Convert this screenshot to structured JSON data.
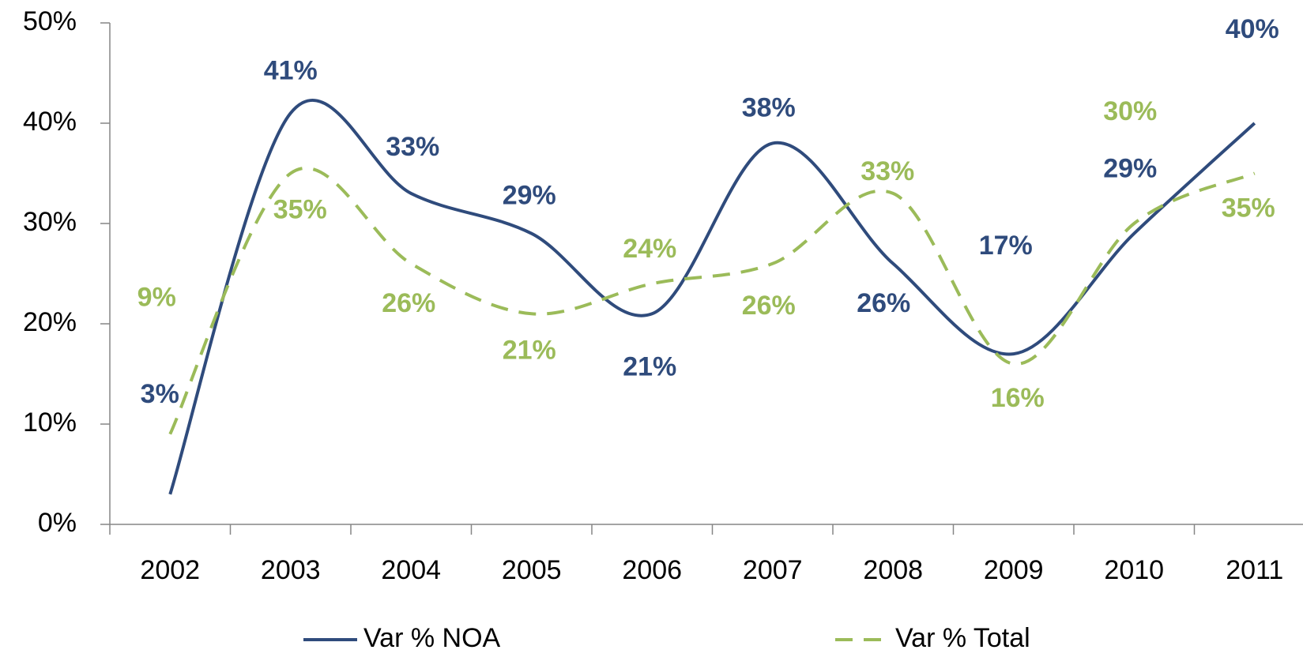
{
  "chart_data": {
    "type": "line",
    "categories": [
      "2002",
      "2003",
      "2004",
      "2005",
      "2006",
      "2007",
      "2008",
      "2009",
      "2010",
      "2011"
    ],
    "series": [
      {
        "name": "Var % NOA",
        "color": "#2f4b7c",
        "dash": "solid",
        "values": [
          3,
          41,
          33,
          29,
          21,
          38,
          26,
          17,
          29,
          40
        ],
        "value_labels": [
          "3%",
          "41%",
          "33%",
          "29%",
          "21%",
          "38%",
          "26%",
          "17%",
          "29%",
          "40%"
        ]
      },
      {
        "name": "Var % Total",
        "color": "#9bbb59",
        "dash": "dashed",
        "values": [
          9,
          35,
          26,
          21,
          24,
          26,
          33,
          16,
          30,
          35
        ],
        "value_labels": [
          "9%",
          "35%",
          "26%",
          "21%",
          "24%",
          "26%",
          "33%",
          "16%",
          "30%",
          "35%"
        ]
      }
    ],
    "ylim": [
      0,
      50
    ],
    "yticks": [
      {
        "value": 0,
        "label": "0%"
      },
      {
        "value": 10,
        "label": "10%"
      },
      {
        "value": 20,
        "label": "20%"
      },
      {
        "value": 30,
        "label": "30%"
      },
      {
        "value": 40,
        "label": "40%"
      },
      {
        "value": 50,
        "label": "50%"
      }
    ],
    "smooth": true,
    "grid": false,
    "legend": "bottom"
  }
}
